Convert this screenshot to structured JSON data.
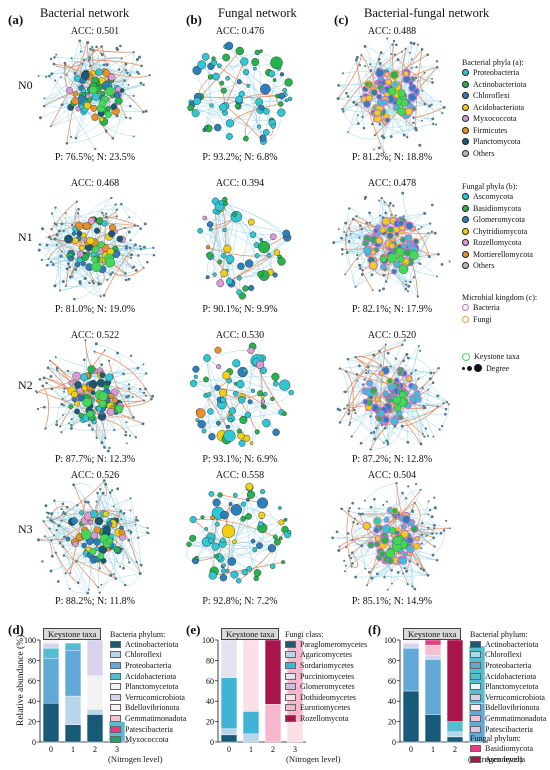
{
  "columns": [
    {
      "letter": "(a)",
      "title": "Bacterial network"
    },
    {
      "letter": "(b)",
      "title": "Fungal network"
    },
    {
      "letter": "(c)",
      "title": "Bacterial-fungal network"
    }
  ],
  "rows": [
    "N0",
    "N1",
    "N2",
    "N3"
  ],
  "networks": [
    [
      {
        "acc": "ACC: 0.501",
        "pn": "P: 76.5%; N: 23.5%"
      },
      {
        "acc": "ACC: 0.476",
        "pn": "P: 93.2%; N: 6.8%"
      },
      {
        "acc": "ACC: 0.488",
        "pn": "P: 81.2%; N: 18.8%"
      }
    ],
    [
      {
        "acc": "ACC: 0.468",
        "pn": "P: 81.0%; N: 19.0%"
      },
      {
        "acc": "ACC: 0.394",
        "pn": "P: 90.1%; N: 9.9%"
      },
      {
        "acc": "ACC: 0.478",
        "pn": "P: 82.1%; N: 17.9%"
      }
    ],
    [
      {
        "acc": "ACC: 0.522",
        "pn": "P: 87.7%; N: 12.3%"
      },
      {
        "acc": "ACC: 0.530",
        "pn": "P: 93.1%; N: 6.9%"
      },
      {
        "acc": "ACC: 0.520",
        "pn": "P: 87.2%; N: 12.8%"
      }
    ],
    [
      {
        "acc": "ACC: 0.526",
        "pn": "P: 88.2%; N: 11.8%"
      },
      {
        "acc": "ACC: 0.558",
        "pn": "P: 92.8%; N: 7.2%"
      },
      {
        "acc": "ACC: 0.504",
        "pn": "P: 85.1%; N: 14.9%"
      }
    ]
  ],
  "colors": {
    "positive_edge": "#8fd0ea",
    "negative_edge": "#e8804a"
  },
  "legend": {
    "bacterial_title": "Bacterial phyla (a):",
    "bacterial": [
      {
        "label": "Proteobacteria",
        "color": "#2fc7d4"
      },
      {
        "label": "Actinobacteriota",
        "color": "#27b34b"
      },
      {
        "label": "Chloroflexi",
        "color": "#2c7fb8"
      },
      {
        "label": "Acidobacteriota",
        "color": "#f0d010"
      },
      {
        "label": "Myxococcota",
        "color": "#d99ad6"
      },
      {
        "label": "Firmicutes",
        "color": "#e8902a"
      },
      {
        "label": "Planctomycota",
        "color": "#1a5a77"
      },
      {
        "label": "Others",
        "color": "#b8b8b8"
      }
    ],
    "fungal_title": "Fungal phyla (b):",
    "fungal": [
      {
        "label": "Ascomycota",
        "color": "#2fc7d4"
      },
      {
        "label": "Basidiomycota",
        "color": "#27b34b"
      },
      {
        "label": "Glomeromycota",
        "color": "#2c7fb8"
      },
      {
        "label": "Chytridiomycota",
        "color": "#f0d010"
      },
      {
        "label": "Rozellomycota",
        "color": "#d99ad6"
      },
      {
        "label": "Mortierellomycota",
        "color": "#e8902a"
      },
      {
        "label": "Others",
        "color": "#b8b8b8"
      }
    ],
    "kingdom_title": "Microbial kingdom (c):",
    "kingdom": [
      {
        "label": "Bacteria",
        "color": "#c070d0"
      },
      {
        "label": "Fungi",
        "color": "#e8a040"
      }
    ],
    "keystone": "Keystone taxa",
    "degree": "Degree"
  },
  "bars": {
    "ylabel": "Relative abundance (%)",
    "xlabel": "(Nitrogen level)",
    "keystone_label": "Keystone taxa",
    "panels": [
      {
        "letter": "(d)",
        "legend_title": "Bacteria phylum:",
        "categories": [
          "0",
          "1",
          "2",
          "3"
        ],
        "series": [
          {
            "name": "Actinobacteriota",
            "color": "#175a78",
            "values": [
              38,
              17,
              27,
              0
            ]
          },
          {
            "name": "Chloroflexi",
            "color": "#b8d6ea",
            "values": [
              0,
              28,
              5,
              0
            ]
          },
          {
            "name": "Proteobacteria",
            "color": "#62a9d7",
            "values": [
              44,
              45,
              0,
              0
            ]
          },
          {
            "name": "Acidobacteriota",
            "color": "#54bdd0",
            "values": [
              10,
              7,
              0,
              20
            ]
          },
          {
            "name": "Planctomycetota",
            "color": "#f2f2f2",
            "values": [
              0,
              0,
              33,
              0
            ]
          },
          {
            "name": "Verrucomicrobiota",
            "color": "#d8d3ec",
            "values": [
              5,
              0,
              35,
              0
            ]
          },
          {
            "name": "Bdellovibrionota",
            "color": "#f7f0f5",
            "values": [
              3,
              0,
              0,
              0
            ]
          },
          {
            "name": "Gemmatimonadota",
            "color": "#f7bfd0",
            "values": [
              0,
              0,
              0,
              0
            ]
          },
          {
            "name": "Patescibacteria",
            "color": "#e43f82",
            "values": [
              0,
              0,
              0,
              0
            ]
          },
          {
            "name": "Myxococcota",
            "color": "#1f9f6c",
            "values": [
              0,
              0,
              0,
              0
            ]
          }
        ]
      },
      {
        "letter": "(e)",
        "legend_title": "Fungi class:",
        "categories": [
          "0",
          "1",
          "2",
          "3"
        ],
        "series": [
          {
            "name": "Paraglomeromycetes",
            "color": "#175a78",
            "values": [
              7,
              0,
              0,
              0
            ]
          },
          {
            "name": "Agaricomycetes",
            "color": "#b8d6ea",
            "values": [
              6,
              8,
              0,
              0
            ]
          },
          {
            "name": "Sordariomycetes",
            "color": "#3fb4d4",
            "values": [
              50,
              22,
              0,
              0
            ]
          },
          {
            "name": "Pucciniomycetes",
            "color": "#e6e1f2",
            "values": [
              37,
              0,
              0,
              0
            ]
          },
          {
            "name": "Glomeromycetes",
            "color": "#c9c0e2",
            "values": [
              0,
              0,
              0,
              0
            ]
          },
          {
            "name": "Dothideomycetes",
            "color": "#fbdfe7",
            "values": [
              0,
              70,
              0,
              19
            ]
          },
          {
            "name": "Eurotiomycetes",
            "color": "#f6b6cb",
            "values": [
              0,
              0,
              37,
              81
            ]
          },
          {
            "name": "Rozellomycota",
            "color": "#a8154b",
            "values": [
              0,
              0,
              63,
              0
            ]
          }
        ]
      },
      {
        "letter": "(f)",
        "legend_title": "Bacterial phylum:",
        "legend_title_2": "Fungal phylum:",
        "categories": [
          "0",
          "1",
          "2",
          "3"
        ],
        "series": [
          {
            "name": "Actinobacteriota",
            "color": "#175a78",
            "values": [
              50,
              27,
              5,
              0
            ]
          },
          {
            "name": "Chloroflexi",
            "color": "#b8d6ea",
            "values": [
              0,
              0,
              5,
              0
            ]
          },
          {
            "name": "Proteobacteria",
            "color": "#62a9d7",
            "values": [
              42,
              54,
              0,
              38
            ]
          },
          {
            "name": "Acidobacteriota",
            "color": "#54bdd0",
            "values": [
              0,
              0,
              10,
              56
            ]
          },
          {
            "name": "Planctomycetota",
            "color": "#f2f2f2",
            "values": [
              0,
              0,
              0,
              0
            ]
          },
          {
            "name": "Verrucomicrobiota",
            "color": "#d8d3ec",
            "values": [
              5,
              4,
              0,
              0
            ]
          },
          {
            "name": "Bdellovibrionota",
            "color": "#f7f0f5",
            "values": [
              3,
              0,
              0,
              0
            ]
          },
          {
            "name": "Gemmatimonadota",
            "color": "#f7bfd0",
            "values": [
              0,
              10,
              0,
              0
            ]
          },
          {
            "name": "Patescibacteria",
            "color": "#d3cce4",
            "values": [
              0,
              0,
              0,
              0
            ]
          },
          {
            "name": "Basidiomycota",
            "color": "#e43f82",
            "values": [
              0,
              5,
              0,
              0
            ]
          },
          {
            "name": "Ascomycota",
            "color": "#a8154b",
            "values": [
              0,
              0,
              80,
              0
            ]
          }
        ]
      }
    ]
  }
}
